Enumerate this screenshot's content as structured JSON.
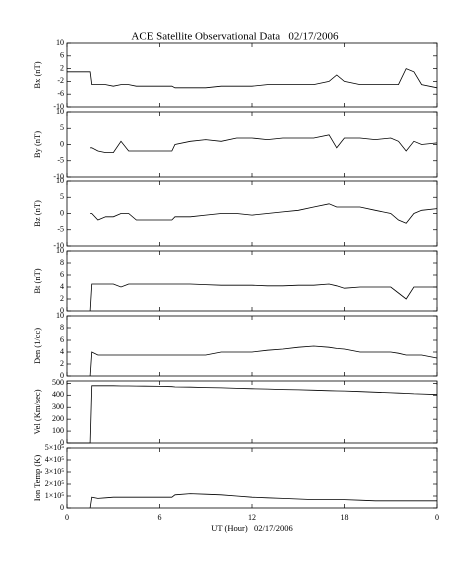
{
  "chart_data": [
    {
      "type": "line",
      "title": "ACE Satellite Observational Data   02/17/2006",
      "ylabel": "Bx (nT)",
      "x": [
        0,
        1.5,
        1.6,
        2,
        2.5,
        3,
        3.5,
        4,
        4.5,
        5,
        6,
        6.8,
        7,
        8,
        9,
        10,
        11,
        12,
        13,
        14,
        15,
        16,
        17,
        17.5,
        18,
        19,
        20,
        21,
        21.5,
        22,
        22.5,
        23,
        24
      ],
      "values": [
        1,
        1,
        -3,
        -3,
        -3,
        -3.5,
        -3,
        -3,
        -3.5,
        -3.5,
        -3.5,
        -3.5,
        -4,
        -4,
        -4,
        -3.5,
        -3.5,
        -3.5,
        -3,
        -3,
        -3,
        -3,
        -2,
        0,
        -2,
        -3,
        -3,
        -3,
        -3,
        2,
        1,
        -3,
        -4
      ],
      "color": "#000000",
      "ylim": [
        -10,
        10
      ],
      "yticks": [
        -10,
        -6,
        -2,
        2,
        6,
        10
      ]
    },
    {
      "type": "line",
      "ylabel": "By (nT)",
      "x": [
        0,
        1.5,
        1.6,
        2,
        2.5,
        3,
        3.5,
        4,
        4.5,
        5,
        6,
        6.8,
        7,
        8,
        9,
        10,
        11,
        12,
        13,
        14,
        15,
        16,
        17,
        17.5,
        18,
        19,
        20,
        21,
        21.5,
        22,
        22.5,
        23,
        24
      ],
      "values": [
        null,
        -1,
        -1,
        -2,
        -2.5,
        -2.5,
        1,
        -2,
        -2,
        -2,
        -2,
        -2,
        0,
        1,
        1.5,
        1,
        2,
        2,
        1.5,
        2,
        2,
        2,
        3,
        -1,
        2,
        2,
        1.5,
        2,
        1,
        -2,
        1,
        0,
        0.5
      ],
      "color": "#000000",
      "ylim": [
        -10,
        10
      ],
      "yticks": [
        -10,
        -5,
        0,
        5,
        10
      ]
    },
    {
      "type": "line",
      "ylabel": "Bz (nT)",
      "x": [
        0,
        1.5,
        1.6,
        2,
        2.5,
        3,
        3.5,
        4,
        4.5,
        5,
        6,
        6.8,
        7,
        8,
        9,
        10,
        11,
        12,
        13,
        14,
        15,
        16,
        17,
        17.5,
        18,
        19,
        20,
        21,
        21.5,
        22,
        22.5,
        23,
        24
      ],
      "values": [
        null,
        0,
        0,
        -2,
        -1,
        -1,
        0,
        0,
        -2,
        -2,
        -2,
        -2,
        -1,
        -1,
        -0.5,
        0,
        0,
        -0.5,
        0,
        0.5,
        1,
        2,
        3,
        2,
        2,
        2,
        1,
        0,
        -2,
        -3,
        0,
        1,
        1.5
      ],
      "color": "#000000",
      "ylim": [
        -10,
        10
      ],
      "yticks": [
        -10,
        -5,
        0,
        5,
        10
      ]
    },
    {
      "type": "line",
      "ylabel": "Bt (nT)",
      "x": [
        0,
        1.5,
        1.6,
        2,
        2.5,
        3,
        3.5,
        4,
        4.5,
        5,
        6,
        6.8,
        7,
        8,
        9,
        10,
        11,
        12,
        13,
        14,
        15,
        16,
        17,
        17.5,
        18,
        19,
        20,
        21,
        21.5,
        22,
        22.5,
        23,
        24
      ],
      "values": [
        null,
        0,
        4.5,
        4.5,
        4.5,
        4.5,
        4,
        4.5,
        4.5,
        4.5,
        4.5,
        4.5,
        4.5,
        4.5,
        4.4,
        4.3,
        4.3,
        4.3,
        4.2,
        4.2,
        4.3,
        4.3,
        4.5,
        4.2,
        3.8,
        4,
        4,
        4,
        3,
        2,
        4,
        4,
        4
      ],
      "color": "#000000",
      "ylim": [
        0,
        10
      ],
      "yticks": [
        0,
        2,
        4,
        6,
        8,
        10
      ]
    },
    {
      "type": "line",
      "ylabel": "Den (1/cc)",
      "x": [
        0,
        1.5,
        1.6,
        2,
        2.5,
        3,
        3.5,
        4,
        4.5,
        5,
        6,
        6.8,
        7,
        8,
        9,
        10,
        11,
        12,
        13,
        14,
        15,
        16,
        17,
        17.5,
        18,
        19,
        20,
        21,
        21.5,
        22,
        22.5,
        23,
        24
      ],
      "values": [
        null,
        0,
        4,
        3.5,
        3.5,
        3.5,
        3.5,
        3.5,
        3.5,
        3.5,
        3.5,
        3.5,
        3.5,
        3.5,
        3.5,
        4,
        4,
        4,
        4.3,
        4.5,
        4.8,
        5,
        4.8,
        4.6,
        4.5,
        4,
        4,
        4,
        3.8,
        3.5,
        3.5,
        3.5,
        3
      ],
      "color": "#000000",
      "ylim": [
        0,
        10
      ],
      "yticks": [
        0,
        2,
        4,
        6,
        8,
        10
      ]
    },
    {
      "type": "line",
      "ylabel": "Vel (Km/sec)",
      "x": [
        0,
        1.5,
        1.6,
        2,
        2.5,
        3,
        3.5,
        4,
        4.5,
        5,
        6,
        6.8,
        7,
        8,
        9,
        10,
        11,
        12,
        13,
        14,
        15,
        16,
        17,
        17.5,
        18,
        19,
        20,
        21,
        21.5,
        22,
        22.5,
        23,
        24
      ],
      "values": [
        0,
        0,
        480,
        480,
        480,
        480,
        478,
        478,
        477,
        476,
        475,
        472,
        470,
        468,
        465,
        462,
        458,
        455,
        452,
        448,
        445,
        442,
        438,
        436,
        435,
        430,
        425,
        420,
        418,
        415,
        412,
        410,
        405
      ],
      "color": "#000000",
      "ylim": [
        0,
        520
      ],
      "yticks": [
        0,
        100,
        200,
        300,
        400,
        500
      ]
    },
    {
      "type": "line",
      "ylabel": "Ion Temp (K)",
      "xlabel": "UT (Hour)   02/17/2006",
      "x": [
        0,
        1.5,
        1.6,
        2,
        2.5,
        3,
        3.5,
        4,
        4.5,
        5,
        6,
        6.8,
        7,
        8,
        9,
        10,
        11,
        12,
        13,
        14,
        15,
        16,
        17,
        17.5,
        18,
        19,
        20,
        21,
        21.5,
        22,
        22.5,
        23,
        24
      ],
      "values": [
        null,
        0,
        90000,
        80000,
        85000,
        90000,
        90000,
        90000,
        90000,
        90000,
        90000,
        90000,
        110000,
        120000,
        115000,
        110000,
        100000,
        90000,
        85000,
        80000,
        75000,
        70000,
        70000,
        70000,
        70000,
        65000,
        60000,
        60000,
        60000,
        60000,
        60000,
        60000,
        60000
      ],
      "color": "#000000",
      "ylim": [
        0,
        500000
      ],
      "yticks": [
        0,
        {
          "value": 100000,
          "label": "1×10⁵"
        },
        {
          "value": 200000,
          "label": "2×10⁵"
        },
        {
          "value": 300000,
          "label": "3×10⁵"
        },
        {
          "value": 400000,
          "label": "4×10⁵"
        },
        {
          "value": 500000,
          "label": "5×10⁵"
        }
      ],
      "xlim": [
        0,
        24
      ],
      "xticks": [
        0,
        6,
        12,
        18,
        {
          "value": 24,
          "label": "0"
        }
      ]
    }
  ]
}
